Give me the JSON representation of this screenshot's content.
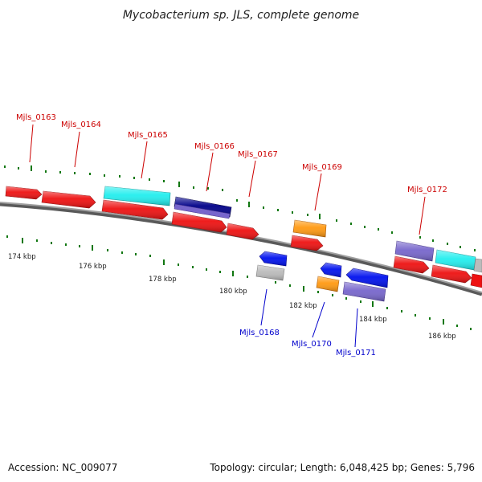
{
  "title": "Mycobacterium sp. JLS, complete genome",
  "footer": {
    "accession": "Accession: NC_009077",
    "topology": "Topology: circular; Length: 6,048,425 bp; Genes: 5,796"
  },
  "scale_labels": [
    "174 kbp",
    "176 kbp",
    "178 kbp",
    "180 kbp",
    "182 kbp",
    "184 kbp",
    "186 kbp"
  ],
  "gene_labels": {
    "mjls_0163": "Mjls_0163",
    "mjls_0164": "Mjls_0164",
    "mjls_0165": "Mjls_0165",
    "mjls_0166": "Mjls_0166",
    "mjls_0167": "Mjls_0167",
    "mjls_0168": "Mjls_0168",
    "mjls_0169": "Mjls_0169",
    "mjls_0170": "Mjls_0170",
    "mjls_0171": "Mjls_0171",
    "mjls_0172": "Mjls_0172"
  },
  "colors": {
    "forward_label": "#cc0000",
    "reverse_label": "#0000cc",
    "red": "#ee1111",
    "cyan": "#22eeee",
    "navy": "#000088",
    "lavender": "#7766cc",
    "orange": "#ff9911",
    "blue": "#0011ee",
    "gray": "#bbbbbb",
    "tick": "#117711",
    "backbone": "#808080"
  }
}
